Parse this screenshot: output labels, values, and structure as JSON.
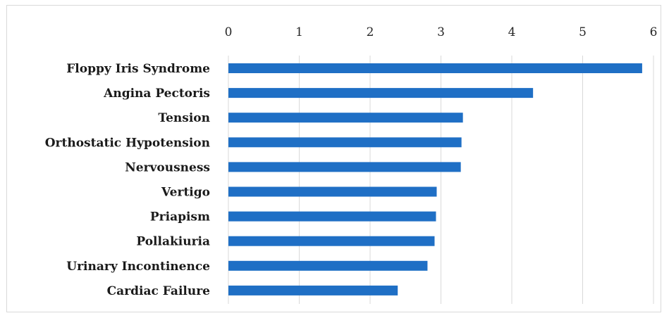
{
  "chart_data": {
    "type": "bar",
    "orientation": "horizontal",
    "categories": [
      "Floppy Iris Syndrome",
      "Angina Pectoris",
      "Tension",
      "Orthostatic Hypotension",
      "Nervousness",
      "Vertigo",
      "Priapism",
      "Pollakiuria",
      "Urinary Incontinence",
      "Cardiac Failure"
    ],
    "values": [
      5.84,
      4.3,
      3.31,
      3.29,
      3.28,
      2.94,
      2.93,
      2.91,
      2.81,
      2.39
    ],
    "title": "",
    "xlabel": "",
    "ylabel": "",
    "xlim": [
      0,
      6
    ],
    "xticks": [
      "0",
      "1",
      "2",
      "3",
      "4",
      "5",
      "6"
    ],
    "x_axis_position": "top",
    "grid": true,
    "legend": "none",
    "bar_color": "#1f6fc5"
  }
}
